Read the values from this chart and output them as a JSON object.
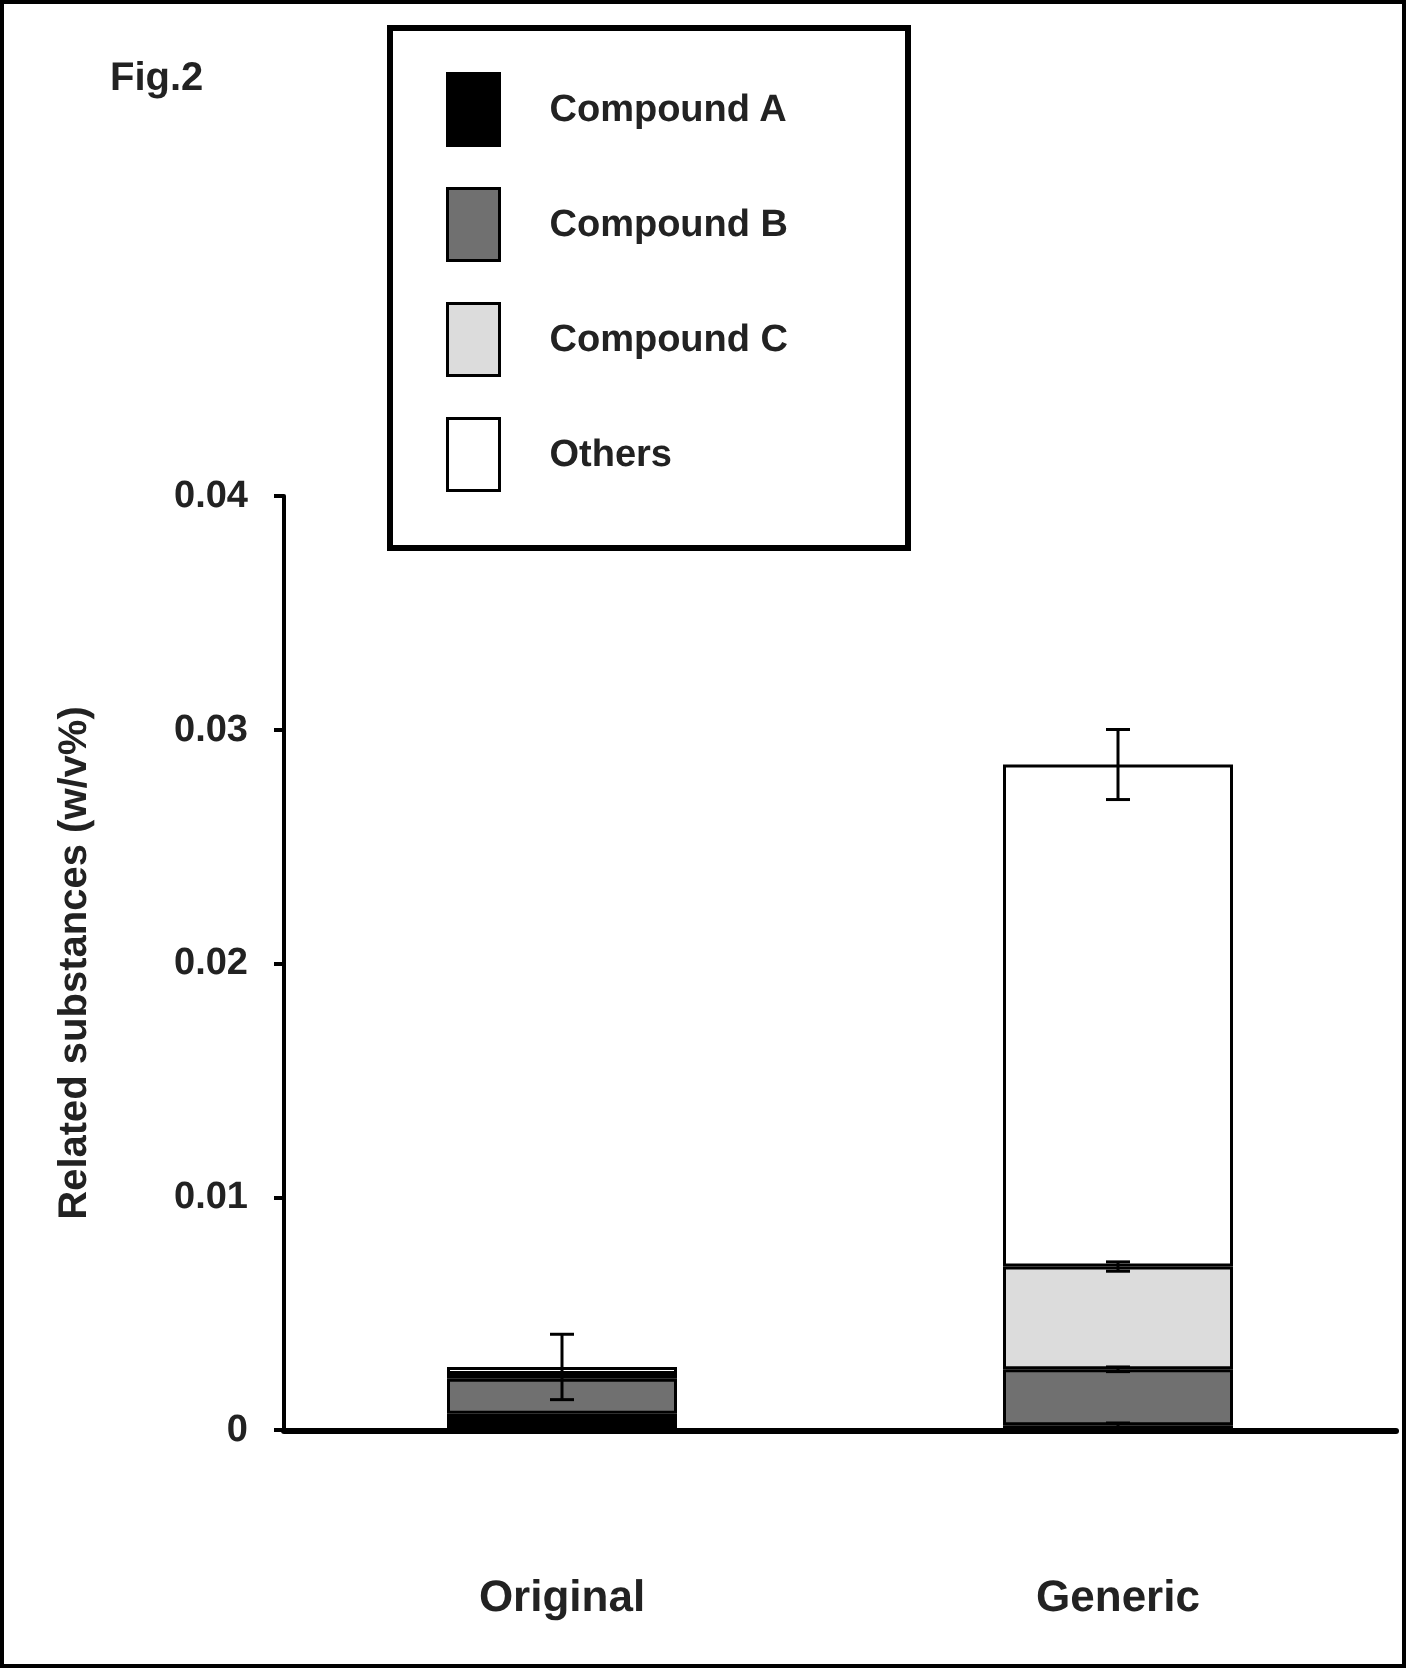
{
  "chart_data": {
    "type": "bar",
    "title": "Fig.2",
    "ylabel": "Related substances (w/v%)",
    "categories": [
      "Original",
      "Generic"
    ],
    "stacked": true,
    "series": [
      {
        "name": "Compound A",
        "color": "#000000",
        "values": [
          0.0007,
          0.0002
        ],
        "errors": [
          null,
          0.0001
        ]
      },
      {
        "name": "Compound B",
        "color": "#707070",
        "values": [
          0.0015,
          0.0024
        ],
        "errors": [
          null,
          0.0001
        ]
      },
      {
        "name": "Compound C",
        "color": "#dcdcdc",
        "values": [
          0.0002,
          0.0044
        ],
        "errors": [
          null,
          0.0002
        ]
      },
      {
        "name": "Others",
        "color": "#ffffff",
        "values": [
          0.0003,
          0.0215
        ],
        "errors": [
          0.0014,
          0.0015
        ]
      }
    ],
    "ylim": [
      0,
      0.04
    ],
    "yticks": [
      0,
      0.01,
      0.02,
      0.03,
      0.04
    ],
    "grid": false,
    "legend": "top"
  }
}
